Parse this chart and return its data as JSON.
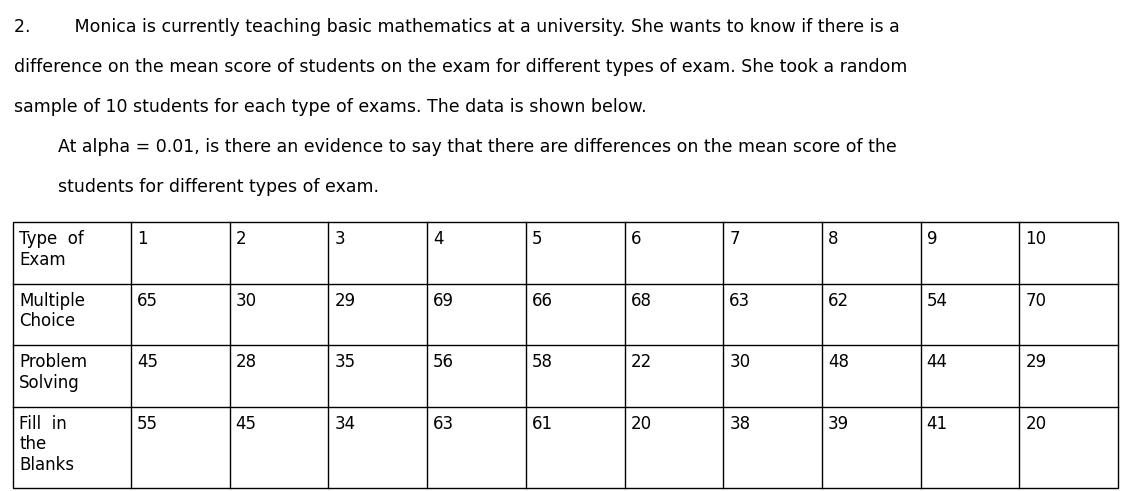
{
  "paragraph_lines": [
    "2.        Monica is currently teaching basic mathematics at a university. She wants to know if there is a",
    "difference on the mean score of students on the exam for different types of exam. She took a random",
    "sample of 10 students for each type of exams. The data is shown below.",
    "        At alpha = 0.01, is there an evidence to say that there are differences on the mean score of the",
    "        students for different types of exam."
  ],
  "col_headers": [
    "Type  of\nExam",
    "1",
    "2",
    "3",
    "4",
    "5",
    "6",
    "7",
    "8",
    "9",
    "10"
  ],
  "row_labels": [
    "Multiple\nChoice",
    "Problem\nSolving",
    "Fill  in\nthe\nBlanks"
  ],
  "row_data": [
    [
      65,
      30,
      29,
      69,
      66,
      68,
      63,
      62,
      54,
      70
    ],
    [
      45,
      28,
      35,
      56,
      58,
      22,
      30,
      48,
      44,
      29
    ],
    [
      55,
      45,
      34,
      63,
      61,
      20,
      38,
      39,
      41,
      20
    ]
  ],
  "bg_color": "#ffffff",
  "text_color": "#000000",
  "font_size_para": 12.5,
  "font_size_table": 12.0,
  "fig_width": 11.31,
  "fig_height": 4.91,
  "dpi": 100
}
